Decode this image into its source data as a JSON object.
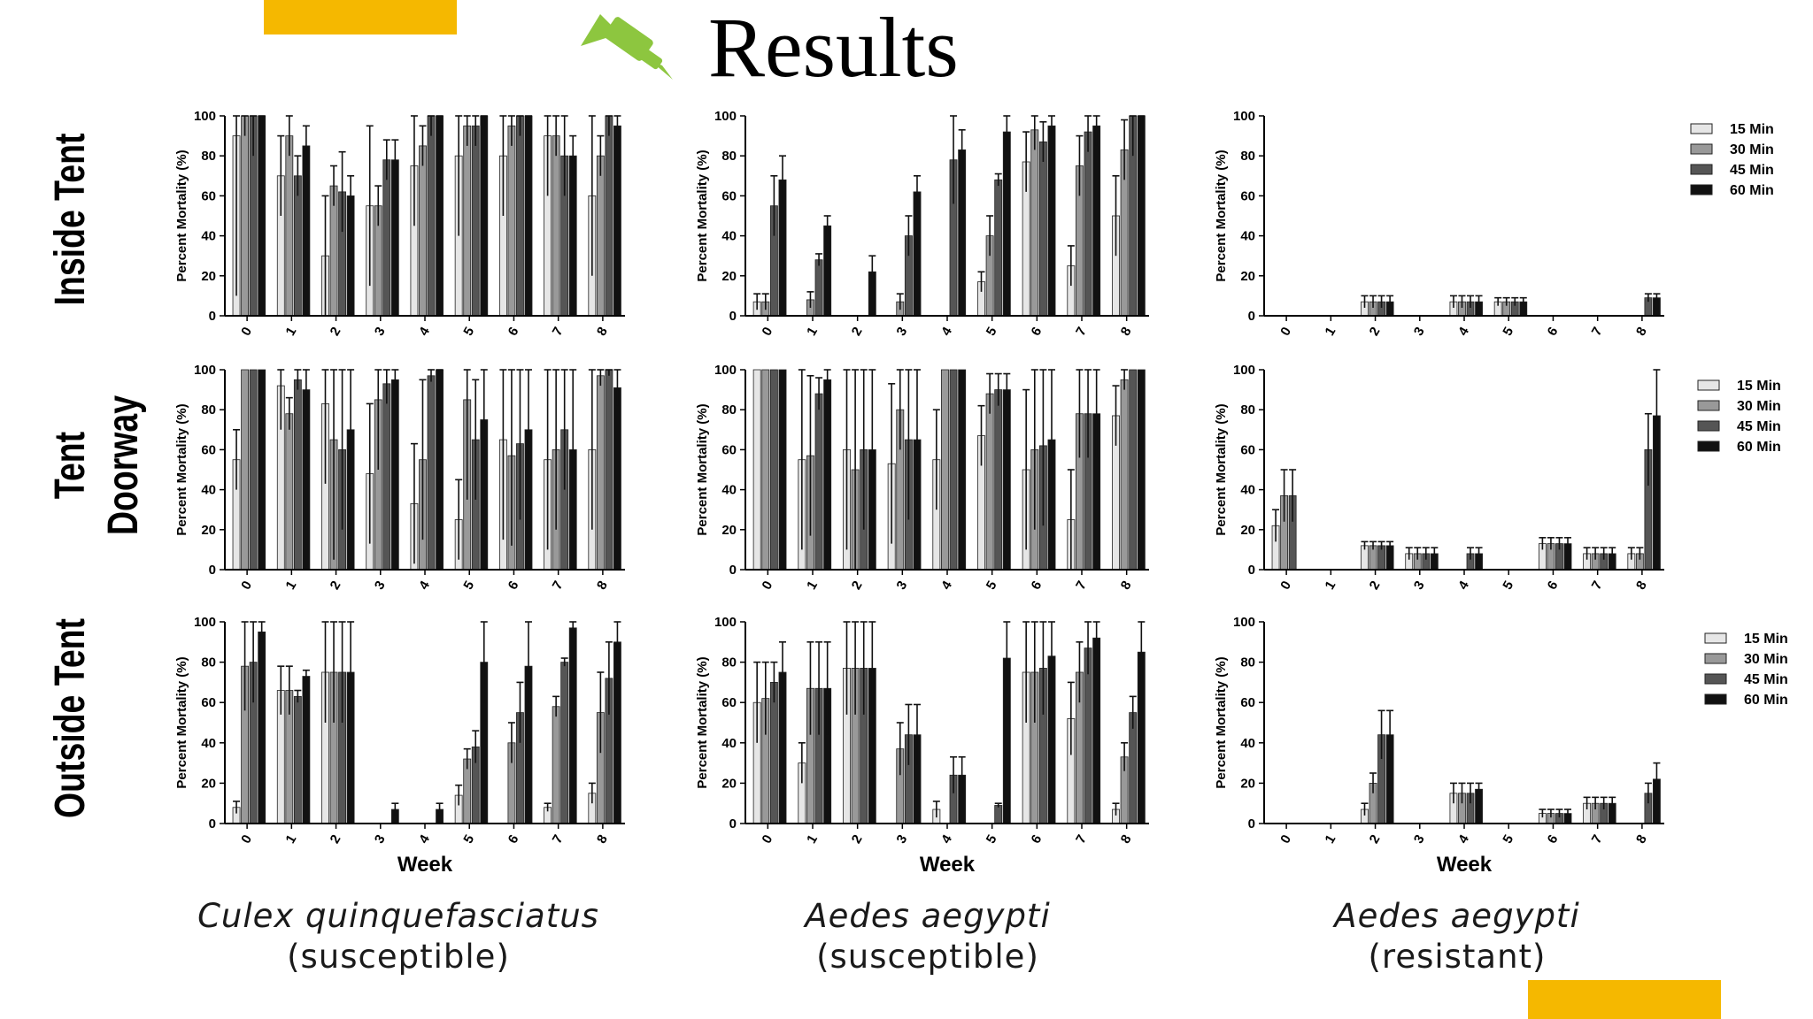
{
  "title": "Results",
  "colors": {
    "accent": "#F5B800",
    "pin": "#8DC63F",
    "series": [
      "#e6e6e6",
      "#999999",
      "#555555",
      "#111111"
    ]
  },
  "icon": "pushpin-icon",
  "row_labels": [
    "Inside Tent",
    "Tent Doorway",
    "Outside Tent"
  ],
  "species": [
    {
      "name": "Culex quinquefasciatus",
      "status": "(susceptible)"
    },
    {
      "name": "Aedes aegypti",
      "status": "(susceptible)"
    },
    {
      "name": "Aedes aegypti",
      "status": "(resistant)"
    }
  ],
  "chart_data": [
    {
      "type": "bar",
      "id": "culex-inside",
      "row": "Inside Tent",
      "species": "Culex quinquefasciatus (susceptible)",
      "ylabel": "Percent Mortality (%)",
      "xlabel": "",
      "ylim": [
        0,
        100
      ],
      "yticks": [
        0,
        20,
        40,
        60,
        80,
        100
      ],
      "categories": [
        "0",
        "1",
        "2",
        "3",
        "4",
        "5",
        "6",
        "7",
        "8"
      ],
      "series": [
        {
          "name": "15 Min",
          "values": [
            90,
            70,
            30,
            55,
            75,
            80,
            80,
            90,
            60
          ]
        },
        {
          "name": "30 Min",
          "values": [
            100,
            90,
            65,
            55,
            85,
            95,
            95,
            90,
            80
          ]
        },
        {
          "name": "45 Min",
          "values": [
            100,
            70,
            62,
            78,
            100,
            95,
            100,
            80,
            100
          ]
        },
        {
          "name": "60 Min",
          "values": [
            100,
            85,
            60,
            78,
            100,
            100,
            100,
            80,
            95
          ]
        }
      ],
      "errors": [
        [
          80,
          20,
          30,
          40,
          30,
          40,
          30,
          30,
          40
        ],
        [
          10,
          10,
          10,
          10,
          10,
          10,
          10,
          10,
          10
        ],
        [
          20,
          10,
          20,
          10,
          10,
          10,
          10,
          20,
          10
        ],
        [
          10,
          10,
          10,
          10,
          10,
          10,
          10,
          10,
          10
        ]
      ]
    },
    {
      "type": "bar",
      "id": "aedes-s-inside",
      "row": "Inside Tent",
      "species": "Aedes aegypti (susceptible)",
      "ylabel": "Percent Mortality (%)",
      "xlabel": "",
      "ylim": [
        0,
        100
      ],
      "yticks": [
        0,
        20,
        40,
        60,
        80,
        100
      ],
      "categories": [
        "0",
        "1",
        "2",
        "3",
        "4",
        "5",
        "6",
        "7",
        "8"
      ],
      "series": [
        {
          "name": "15 Min",
          "values": [
            7,
            0,
            0,
            0,
            0,
            17,
            77,
            25,
            50
          ]
        },
        {
          "name": "30 Min",
          "values": [
            7,
            8,
            0,
            7,
            0,
            40,
            93,
            75,
            83
          ]
        },
        {
          "name": "45 Min",
          "values": [
            55,
            28,
            0,
            40,
            78,
            68,
            87,
            92,
            100
          ]
        },
        {
          "name": "60 Min",
          "values": [
            68,
            45,
            22,
            62,
            83,
            92,
            95,
            95,
            100
          ]
        }
      ],
      "errors": [
        [
          4,
          0,
          0,
          0,
          0,
          5,
          15,
          10,
          20
        ],
        [
          4,
          4,
          0,
          4,
          0,
          10,
          10,
          15,
          15
        ],
        [
          15,
          3,
          0,
          10,
          22,
          3,
          10,
          10,
          20
        ],
        [
          12,
          5,
          8,
          8,
          10,
          10,
          5,
          10,
          20
        ]
      ]
    },
    {
      "type": "bar",
      "id": "aedes-r-inside",
      "row": "Inside Tent",
      "species": "Aedes aegypti (resistant)",
      "ylabel": "Percent Mortality (%)",
      "xlabel": "",
      "ylim": [
        0,
        100
      ],
      "yticks": [
        0,
        20,
        40,
        60,
        80,
        100
      ],
      "categories": [
        "0",
        "1",
        "2",
        "3",
        "4",
        "5",
        "6",
        "7",
        "8"
      ],
      "series": [
        {
          "name": "15 Min",
          "values": [
            0,
            0,
            7,
            0,
            7,
            7,
            0,
            0,
            0
          ]
        },
        {
          "name": "30 Min",
          "values": [
            0,
            0,
            7,
            0,
            7,
            7,
            0,
            0,
            0
          ]
        },
        {
          "name": "45 Min",
          "values": [
            0,
            0,
            7,
            0,
            7,
            7,
            0,
            0,
            9
          ]
        },
        {
          "name": "60 Min",
          "values": [
            0,
            0,
            7,
            0,
            7,
            7,
            0,
            0,
            9
          ]
        }
      ],
      "errors": [
        [
          0,
          0,
          3,
          0,
          3,
          2,
          0,
          0,
          0
        ],
        [
          0,
          0,
          3,
          0,
          3,
          2,
          0,
          0,
          0
        ],
        [
          0,
          0,
          3,
          0,
          3,
          2,
          0,
          0,
          2
        ],
        [
          0,
          0,
          3,
          0,
          3,
          2,
          0,
          0,
          2
        ]
      ],
      "legend": [
        "15 Min",
        "30 Min",
        "45 Min",
        "60 Min"
      ]
    },
    {
      "type": "bar",
      "id": "culex-doorway",
      "row": "Tent Doorway",
      "species": "Culex quinquefasciatus (susceptible)",
      "ylabel": "Percent Mortality (%)",
      "xlabel": "",
      "ylim": [
        0,
        100
      ],
      "yticks": [
        0,
        20,
        40,
        60,
        80,
        100
      ],
      "categories": [
        "0",
        "1",
        "2",
        "3",
        "4",
        "5",
        "6",
        "7",
        "8"
      ],
      "series": [
        {
          "name": "15 Min",
          "values": [
            55,
            92,
            83,
            48,
            33,
            25,
            65,
            55,
            60
          ]
        },
        {
          "name": "30 Min",
          "values": [
            100,
            78,
            65,
            85,
            55,
            85,
            57,
            60,
            97
          ]
        },
        {
          "name": "45 Min",
          "values": [
            100,
            95,
            60,
            93,
            97,
            65,
            63,
            70,
            100
          ]
        },
        {
          "name": "60 Min",
          "values": [
            100,
            90,
            70,
            95,
            100,
            75,
            70,
            60,
            91
          ]
        }
      ],
      "errors": [
        [
          15,
          22,
          40,
          35,
          30,
          20,
          50,
          45,
          40
        ],
        [
          0,
          8,
          60,
          35,
          40,
          50,
          45,
          40,
          5
        ],
        [
          0,
          5,
          40,
          10,
          3,
          30,
          38,
          30,
          3
        ],
        [
          0,
          10,
          50,
          8,
          3,
          40,
          40,
          40,
          9
        ]
      ]
    },
    {
      "type": "bar",
      "id": "aedes-s-doorway",
      "row": "Tent Doorway",
      "species": "Aedes aegypti (susceptible)",
      "ylabel": "Percent Mortality (%)",
      "xlabel": "",
      "ylim": [
        0,
        100
      ],
      "yticks": [
        0,
        20,
        40,
        60,
        80,
        100
      ],
      "categories": [
        "0",
        "1",
        "2",
        "3",
        "4",
        "5",
        "6",
        "7",
        "8"
      ],
      "series": [
        {
          "name": "15 Min",
          "values": [
            100,
            55,
            60,
            53,
            55,
            67,
            50,
            25,
            77
          ]
        },
        {
          "name": "30 Min",
          "values": [
            100,
            57,
            50,
            80,
            100,
            88,
            60,
            78,
            95
          ]
        },
        {
          "name": "45 Min",
          "values": [
            100,
            88,
            60,
            65,
            100,
            90,
            62,
            78,
            100
          ]
        },
        {
          "name": "60 Min",
          "values": [
            100,
            95,
            60,
            65,
            100,
            90,
            65,
            78,
            100
          ]
        }
      ],
      "errors": [
        [
          0,
          45,
          50,
          40,
          25,
          15,
          40,
          25,
          15
        ],
        [
          0,
          40,
          50,
          20,
          0,
          10,
          40,
          22,
          5
        ],
        [
          0,
          8,
          40,
          40,
          0,
          8,
          40,
          22,
          0
        ],
        [
          0,
          5,
          40,
          35,
          0,
          8,
          35,
          22,
          0
        ]
      ]
    },
    {
      "type": "bar",
      "id": "aedes-r-doorway",
      "row": "Tent Doorway",
      "species": "Aedes aegypti (resistant)",
      "ylabel": "Percent Mortality (%)",
      "xlabel": "",
      "ylim": [
        0,
        100
      ],
      "yticks": [
        0,
        20,
        40,
        60,
        80,
        100
      ],
      "categories": [
        "0",
        "1",
        "2",
        "3",
        "4",
        "5",
        "6",
        "7",
        "8"
      ],
      "series": [
        {
          "name": "15 Min",
          "values": [
            22,
            0,
            12,
            8,
            0,
            0,
            13,
            8,
            8
          ]
        },
        {
          "name": "30 Min",
          "values": [
            37,
            0,
            12,
            8,
            0,
            0,
            13,
            8,
            8
          ]
        },
        {
          "name": "45 Min",
          "values": [
            37,
            0,
            12,
            8,
            8,
            0,
            13,
            8,
            60
          ]
        },
        {
          "name": "60 Min",
          "values": [
            0,
            0,
            12,
            8,
            8,
            0,
            13,
            8,
            77
          ]
        }
      ],
      "errors": [
        [
          8,
          0,
          2,
          3,
          0,
          0,
          3,
          3,
          3
        ],
        [
          13,
          0,
          2,
          3,
          0,
          0,
          3,
          3,
          3
        ],
        [
          13,
          0,
          2,
          3,
          3,
          0,
          3,
          3,
          18
        ],
        [
          0,
          0,
          2,
          3,
          3,
          0,
          3,
          3,
          23
        ]
      ],
      "legend": [
        "15 Min",
        "30 Min",
        "45 Min",
        "60 Min"
      ]
    },
    {
      "type": "bar",
      "id": "culex-outside",
      "row": "Outside Tent",
      "species": "Culex quinquefasciatus (susceptible)",
      "ylabel": "Percent Mortality (%)",
      "xlabel": "Week",
      "ylim": [
        0,
        100
      ],
      "yticks": [
        0,
        20,
        40,
        60,
        80,
        100
      ],
      "categories": [
        "0",
        "1",
        "2",
        "3",
        "4",
        "5",
        "6",
        "7",
        "8"
      ],
      "series": [
        {
          "name": "15 Min",
          "values": [
            8,
            66,
            75,
            0,
            0,
            14,
            0,
            8,
            15
          ]
        },
        {
          "name": "30 Min",
          "values": [
            78,
            66,
            75,
            0,
            0,
            32,
            40,
            58,
            55
          ]
        },
        {
          "name": "45 Min",
          "values": [
            80,
            63,
            75,
            0,
            0,
            38,
            55,
            80,
            72
          ]
        },
        {
          "name": "60 Min",
          "values": [
            95,
            73,
            75,
            7,
            7,
            80,
            78,
            97,
            90
          ]
        }
      ],
      "errors": [
        [
          3,
          12,
          25,
          0,
          0,
          5,
          0,
          2,
          5
        ],
        [
          22,
          12,
          25,
          0,
          0,
          5,
          10,
          5,
          20
        ],
        [
          20,
          3,
          25,
          0,
          0,
          8,
          15,
          2,
          18
        ],
        [
          5,
          3,
          25,
          3,
          3,
          20,
          22,
          3,
          10
        ]
      ]
    },
    {
      "type": "bar",
      "id": "aedes-s-outside",
      "row": "Outside Tent",
      "species": "Aedes aegypti (susceptible)",
      "ylabel": "Percent Mortality (%)",
      "xlabel": "Week",
      "ylim": [
        0,
        100
      ],
      "yticks": [
        0,
        20,
        40,
        60,
        80,
        100
      ],
      "categories": [
        "0",
        "1",
        "2",
        "3",
        "4",
        "5",
        "6",
        "7",
        "8"
      ],
      "series": [
        {
          "name": "15 Min",
          "values": [
            60,
            30,
            77,
            0,
            7,
            0,
            75,
            52,
            7
          ]
        },
        {
          "name": "30 Min",
          "values": [
            62,
            67,
            77,
            37,
            0,
            0,
            75,
            75,
            33
          ]
        },
        {
          "name": "45 Min",
          "values": [
            70,
            67,
            77,
            44,
            24,
            9,
            77,
            87,
            55
          ]
        },
        {
          "name": "60 Min",
          "values": [
            75,
            67,
            77,
            44,
            24,
            82,
            83,
            92,
            85
          ]
        }
      ],
      "errors": [
        [
          20,
          10,
          23,
          0,
          4,
          0,
          25,
          18,
          3
        ],
        [
          18,
          23,
          23,
          13,
          0,
          0,
          25,
          15,
          7
        ],
        [
          10,
          23,
          23,
          15,
          9,
          1,
          23,
          13,
          8
        ],
        [
          15,
          23,
          23,
          15,
          9,
          18,
          17,
          8,
          15
        ]
      ]
    },
    {
      "type": "bar",
      "id": "aedes-r-outside",
      "row": "Outside Tent",
      "species": "Aedes aegypti (resistant)",
      "ylabel": "Percent Mortality (%)",
      "xlabel": "Week",
      "ylim": [
        0,
        100
      ],
      "yticks": [
        0,
        20,
        40,
        60,
        80,
        100
      ],
      "categories": [
        "0",
        "1",
        "2",
        "3",
        "4",
        "5",
        "6",
        "7",
        "8"
      ],
      "series": [
        {
          "name": "15 Min",
          "values": [
            0,
            0,
            7,
            0,
            15,
            0,
            5,
            10,
            0
          ]
        },
        {
          "name": "30 Min",
          "values": [
            0,
            0,
            20,
            0,
            15,
            0,
            5,
            10,
            0
          ]
        },
        {
          "name": "45 Min",
          "values": [
            0,
            0,
            44,
            0,
            15,
            0,
            5,
            10,
            15
          ]
        },
        {
          "name": "60 Min",
          "values": [
            0,
            0,
            44,
            0,
            17,
            0,
            5,
            10,
            22
          ]
        }
      ],
      "errors": [
        [
          0,
          0,
          3,
          0,
          5,
          0,
          2,
          3,
          0
        ],
        [
          0,
          0,
          5,
          0,
          5,
          0,
          2,
          3,
          0
        ],
        [
          0,
          0,
          12,
          0,
          5,
          0,
          2,
          3,
          5
        ],
        [
          0,
          0,
          12,
          0,
          3,
          0,
          2,
          3,
          8
        ]
      ],
      "legend": [
        "15 Min",
        "30 Min",
        "45 Min",
        "60 Min"
      ]
    }
  ]
}
